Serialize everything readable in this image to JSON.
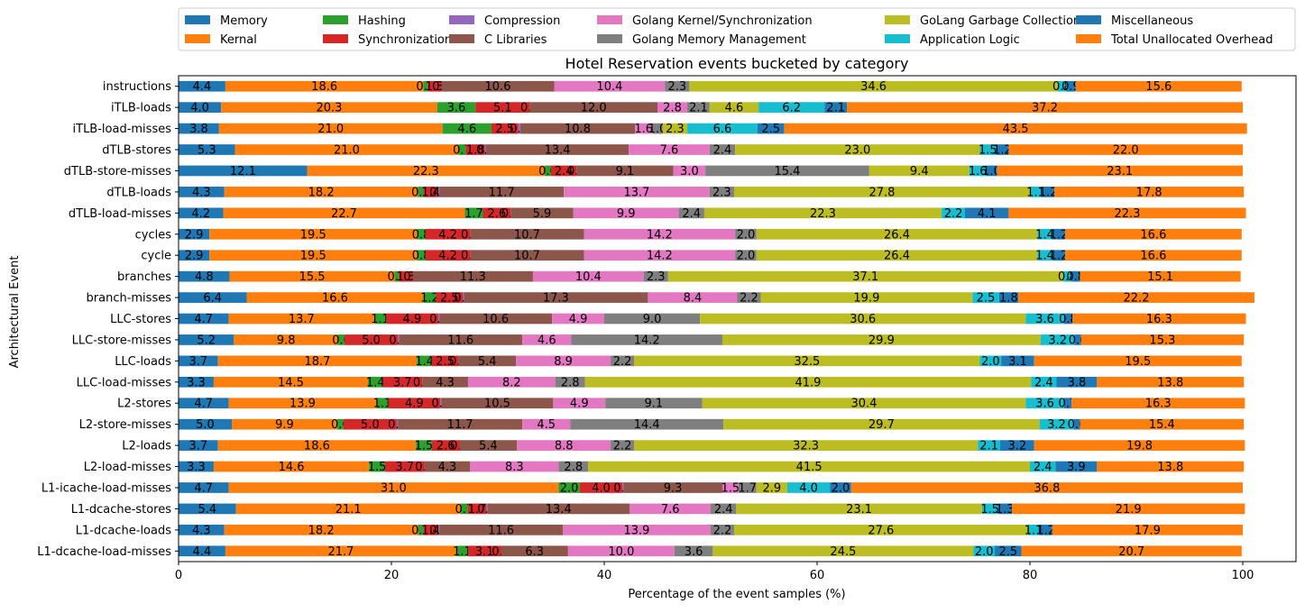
{
  "chart_data": {
    "type": "bar",
    "orientation": "horizontal",
    "stacked": true,
    "title": "Hotel Reservation events bucketed by category",
    "xlabel": "Percentage of the event samples (%)",
    "ylabel": "Architectural Event",
    "xlim": [
      0,
      105
    ],
    "xticks": [
      0,
      20,
      40,
      60,
      80,
      100
    ],
    "grid": false,
    "legend_position": "top",
    "legend_columns": 6,
    "categories": [
      "instructions",
      "iTLB-loads",
      "iTLB-load-misses",
      "dTLB-stores",
      "dTLB-store-misses",
      "dTLB-loads",
      "dTLB-load-misses",
      "cycles",
      "cycle",
      "branches",
      "branch-misses",
      "LLC-stores",
      "LLC-store-misses",
      "LLC-loads",
      "LLC-load-misses",
      "L2-stores",
      "L2-store-misses",
      "L2-loads",
      "L2-load-misses",
      "L1-icache-load-misses",
      "L1-dcache-stores",
      "L1-dcache-loads",
      "L1-dcache-load-misses"
    ],
    "series": [
      {
        "name": "Memory",
        "color": "#1f77b4",
        "values": [
          4.4,
          4.0,
          3.8,
          5.3,
          12.1,
          4.3,
          4.2,
          2.9,
          2.9,
          4.8,
          6.4,
          4.7,
          5.2,
          3.7,
          3.3,
          4.7,
          5.0,
          3.7,
          3.3,
          4.7,
          5.4,
          4.3,
          4.4
        ]
      },
      {
        "name": "Kernal",
        "color": "#ff7f0e",
        "values": [
          18.6,
          20.3,
          21.0,
          21.0,
          22.3,
          18.2,
          22.7,
          19.5,
          19.5,
          15.5,
          16.6,
          13.7,
          9.8,
          18.7,
          14.5,
          13.9,
          9.9,
          18.6,
          14.6,
          31.0,
          21.1,
          18.2,
          21.7
        ]
      },
      {
        "name": "Hashing",
        "color": "#2ca02c",
        "values": [
          0.4,
          3.6,
          4.6,
          0.7,
          0.6,
          0.5,
          1.7,
          0.8,
          0.8,
          0.4,
          1.2,
          1.1,
          0.6,
          1.4,
          1.4,
          1.1,
          0.6,
          1.5,
          1.5,
          2.0,
          0.7,
          0.5,
          1.1
        ]
      },
      {
        "name": "Synchronization",
        "color": "#d62728",
        "values": [
          1.3,
          5.1,
          2.5,
          1.8,
          2.4,
          1.4,
          2.6,
          4.2,
          4.2,
          1.3,
          2.5,
          4.9,
          5.0,
          2.5,
          3.7,
          4.9,
          5.0,
          2.6,
          3.7,
          4.0,
          1.7,
          1.4,
          3.1
        ]
      },
      {
        "name": "Compression",
        "color": "#9467bd",
        "values": [
          0.0,
          0.0,
          0.2,
          0.1,
          0.0,
          0.1,
          0.0,
          0.0,
          0.0,
          0.0,
          0.1,
          0.1,
          0.1,
          0.0,
          0.0,
          0.1,
          0.1,
          0.0,
          0.0,
          0.1,
          0.1,
          0.1,
          0.0
        ]
      },
      {
        "name": "C Libraries",
        "color": "#8c564b",
        "values": [
          10.6,
          12.0,
          10.8,
          13.4,
          9.1,
          11.7,
          5.9,
          10.7,
          10.7,
          11.3,
          17.3,
          10.6,
          11.6,
          5.4,
          4.3,
          10.5,
          11.7,
          5.4,
          4.3,
          9.3,
          13.4,
          11.6,
          6.3
        ]
      },
      {
        "name": "Golang Kernel/Synchronization",
        "color": "#e377c2",
        "values": [
          10.4,
          2.8,
          1.6,
          7.6,
          3.0,
          13.7,
          9.9,
          14.2,
          14.2,
          10.4,
          8.4,
          4.9,
          4.6,
          8.9,
          8.2,
          4.9,
          4.5,
          8.8,
          8.3,
          1.5,
          7.6,
          13.9,
          10.0
        ]
      },
      {
        "name": "Golang Memory Management",
        "color": "#7f7f7f",
        "values": [
          2.3,
          2.1,
          1.0,
          2.4,
          15.4,
          2.3,
          2.4,
          2.0,
          2.0,
          2.3,
          2.2,
          9.0,
          14.2,
          2.2,
          2.8,
          9.1,
          14.4,
          2.2,
          2.8,
          1.7,
          2.4,
          2.2,
          3.6
        ]
      },
      {
        "name": "GoLang Garbage Collection",
        "color": "#bcbd22",
        "values": [
          34.6,
          4.6,
          2.3,
          23.0,
          9.4,
          27.8,
          22.3,
          26.4,
          26.4,
          37.1,
          19.9,
          30.6,
          29.9,
          32.5,
          41.9,
          30.4,
          29.7,
          32.3,
          41.5,
          2.9,
          23.1,
          27.6,
          24.5
        ]
      },
      {
        "name": "Application Logic",
        "color": "#17becf",
        "values": [
          0.8,
          6.2,
          6.6,
          1.5,
          1.6,
          1.1,
          2.2,
          1.4,
          1.4,
          0.8,
          2.5,
          3.6,
          3.2,
          2.0,
          2.4,
          3.6,
          3.2,
          2.1,
          2.4,
          4.0,
          1.5,
          1.1,
          2.0
        ]
      },
      {
        "name": "Miscellaneous",
        "color": "#1f77b4",
        "values": [
          0.9,
          2.1,
          2.5,
          1.2,
          1.0,
          1.2,
          4.1,
          1.2,
          1.2,
          0.8,
          1.8,
          0.8,
          0.6,
          3.1,
          3.8,
          0.7,
          0.6,
          3.2,
          3.9,
          2.0,
          1.3,
          1.2,
          2.5
        ]
      },
      {
        "name": "Total Unallocated Overhead",
        "color": "#ff7f0e",
        "values": [
          15.6,
          37.2,
          43.5,
          22.0,
          23.1,
          17.8,
          22.3,
          16.6,
          16.6,
          15.1,
          22.2,
          16.3,
          15.3,
          19.5,
          13.8,
          16.3,
          15.4,
          19.8,
          13.8,
          36.8,
          21.9,
          17.9,
          20.7
        ]
      }
    ]
  }
}
